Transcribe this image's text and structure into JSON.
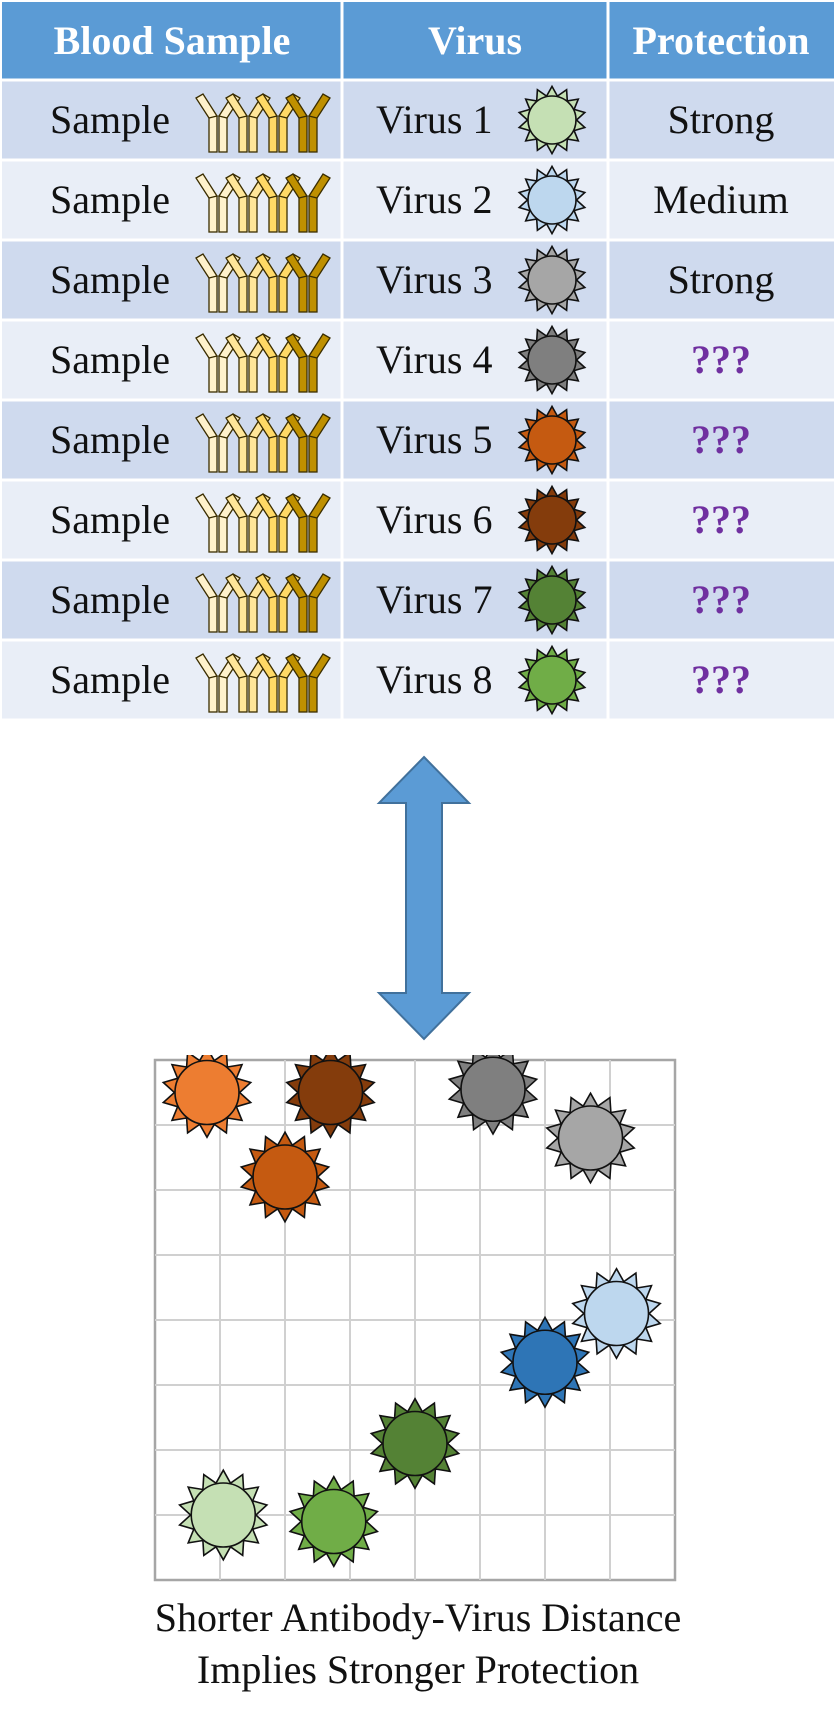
{
  "table": {
    "headers": [
      "Blood Sample",
      "Virus",
      "Protection"
    ],
    "header_color": "#5b9bd5",
    "row_colors": [
      "#cfdaee",
      "#e9eef7"
    ],
    "unknown_color": "#7030a0",
    "rows": [
      {
        "sample": "Sample",
        "virus": "Virus 1",
        "protection": "Strong",
        "virus_color": "#c5e0b4",
        "unknown": false
      },
      {
        "sample": "Sample",
        "virus": "Virus 2",
        "protection": "Medium",
        "virus_color": "#bdd7ee",
        "unknown": false
      },
      {
        "sample": "Sample",
        "virus": "Virus 3",
        "protection": "Strong",
        "virus_color": "#a6a6a6",
        "unknown": false
      },
      {
        "sample": "Sample",
        "virus": "Virus 4",
        "protection": "???",
        "virus_color": "#7f7f7f",
        "unknown": true
      },
      {
        "sample": "Sample",
        "virus": "Virus 5",
        "protection": "???",
        "virus_color": "#c55a11",
        "unknown": true
      },
      {
        "sample": "Sample",
        "virus": "Virus 6",
        "protection": "???",
        "virus_color": "#843c0c",
        "unknown": true
      },
      {
        "sample": "Sample",
        "virus": "Virus 7",
        "protection": "???",
        "virus_color": "#548235",
        "unknown": true
      },
      {
        "sample": "Sample",
        "virus": "Virus 8",
        "protection": "???",
        "virus_color": "#70ad47",
        "unknown": true
      }
    ]
  },
  "antibody_colors": [
    "#fff2cc",
    "#ffe699",
    "#ffd966",
    "#bf9000"
  ],
  "arrow_color": "#5b9bd5",
  "map": {
    "grid_lines": 8,
    "points": [
      {
        "name": "orange-virus",
        "color": "#ed7d31",
        "x": 0.8,
        "y": 7.5
      },
      {
        "name": "virus-6",
        "color": "#843c0c",
        "x": 2.7,
        "y": 7.5
      },
      {
        "name": "virus-5",
        "color": "#c55a11",
        "x": 2.0,
        "y": 6.2
      },
      {
        "name": "virus-4",
        "color": "#7f7f7f",
        "x": 5.2,
        "y": 7.55
      },
      {
        "name": "virus-3",
        "color": "#a6a6a6",
        "x": 6.7,
        "y": 6.8
      },
      {
        "name": "virus-2",
        "color": "#bdd7ee",
        "x": 7.1,
        "y": 4.1
      },
      {
        "name": "blue-virus",
        "color": "#2e75b6",
        "x": 6.0,
        "y": 3.35
      },
      {
        "name": "virus-7",
        "color": "#548235",
        "x": 4.0,
        "y": 2.1
      },
      {
        "name": "virus-1",
        "color": "#c5e0b4",
        "x": 1.05,
        "y": 1.0
      },
      {
        "name": "virus-8",
        "color": "#70ad47",
        "x": 2.75,
        "y": 0.9
      }
    ]
  },
  "caption": {
    "line1": "Shorter Antibody-Virus Distance",
    "line2": "Implies Stronger Protection"
  }
}
